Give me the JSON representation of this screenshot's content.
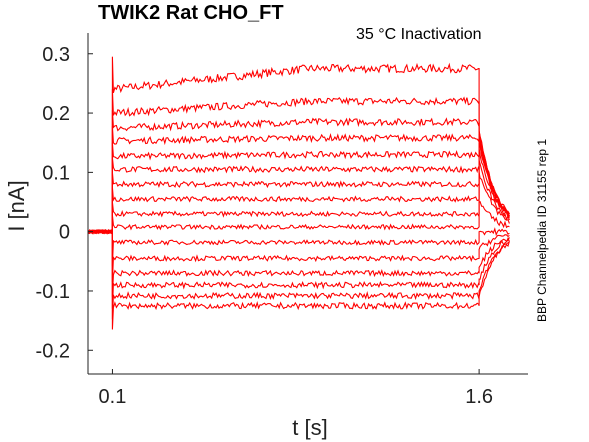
{
  "chart_data": {
    "type": "line",
    "title": "TWIK2  Rat  CHO_FT",
    "annotation": "35 °C  Inactivation",
    "side_label": "BBP Channelpedia ID 31155 rep 1",
    "xlabel": "t [s]",
    "ylabel": "I [nA]",
    "xticks": [
      0.1,
      1.6
    ],
    "xtick_labels": [
      "0.1",
      "1.6"
    ],
    "yticks": [
      -0.2,
      -0.1,
      0,
      0.1,
      0.2,
      0.3
    ],
    "ytick_labels": [
      "-0.2",
      "-0.1",
      "0",
      "0.1",
      "0.2",
      "0.3"
    ],
    "xlim": [
      0,
      1.8
    ],
    "ylim": [
      -0.24,
      0.335
    ],
    "color": "#ff0000",
    "pulse": {
      "start": 0.1,
      "end": 1.6
    },
    "traces": [
      {
        "level": 0.275,
        "rise": 0.035,
        "tail": 0.16
      },
      {
        "level": 0.22,
        "rise": 0.02,
        "tail": 0.17
      },
      {
        "level": 0.185,
        "rise": 0.01,
        "tail": 0.17
      },
      {
        "level": 0.158,
        "rise": 0.005,
        "tail": 0.165
      },
      {
        "level": 0.13,
        "rise": 0.003,
        "tail": 0.16
      },
      {
        "level": 0.105,
        "rise": 0.0,
        "tail": 0.15
      },
      {
        "level": 0.08,
        "rise": 0.0,
        "tail": 0.14
      },
      {
        "level": 0.055,
        "rise": 0.0,
        "tail": 0.12
      },
      {
        "level": 0.03,
        "rise": 0.0,
        "tail": 0.1
      },
      {
        "level": 0.008,
        "rise": 0.0,
        "tail": 0.05
      },
      {
        "level": -0.018,
        "rise": 0.0,
        "tail": 0.0
      },
      {
        "level": -0.045,
        "rise": 0.0,
        "tail": -0.03
      },
      {
        "level": -0.07,
        "rise": 0.0,
        "tail": -0.06
      },
      {
        "level": -0.09,
        "rise": 0.0,
        "tail": -0.08
      },
      {
        "level": -0.108,
        "rise": 0.0,
        "tail": -0.1
      },
      {
        "level": -0.125,
        "rise": 0.0,
        "tail": -0.11
      }
    ]
  }
}
